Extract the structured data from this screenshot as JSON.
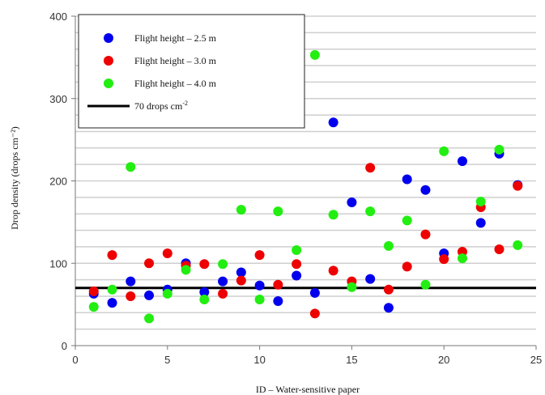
{
  "chart_data": {
    "type": "scatter",
    "xlabel": "ID – Water-sensitive paper",
    "ylabel": "Drop density (drops cm⁻²)",
    "xlim": [
      0,
      25
    ],
    "ylim": [
      0,
      400
    ],
    "x_ticks": [
      0,
      5,
      10,
      15,
      20,
      25
    ],
    "y_ticks": [
      0,
      100,
      200,
      300,
      400
    ],
    "grid": "horizontal",
    "legend_position": "top-left",
    "series": [
      {
        "name": "Flight height – 2.5 m",
        "color": "#0000ee",
        "x": [
          1,
          2,
          3,
          4,
          5,
          6,
          7,
          8,
          9,
          10,
          11,
          12,
          13,
          14,
          15,
          16,
          17,
          18,
          19,
          20,
          21,
          22,
          23,
          24
        ],
        "y": [
          63,
          52,
          78,
          61,
          68,
          100,
          65,
          78,
          89,
          73,
          54,
          85,
          64,
          271,
          174,
          81,
          46,
          202,
          189,
          112,
          224,
          149,
          233,
          195
        ]
      },
      {
        "name": "Flight height – 3.0 m",
        "color": "#ee0000",
        "x": [
          1,
          2,
          3,
          4,
          5,
          6,
          7,
          8,
          9,
          10,
          11,
          12,
          13,
          14,
          15,
          16,
          17,
          18,
          19,
          20,
          21,
          22,
          23,
          24
        ],
        "y": [
          66,
          110,
          60,
          100,
          112,
          97,
          99,
          63,
          79,
          110,
          74,
          99,
          39,
          91,
          78,
          216,
          68,
          96,
          135,
          105,
          114,
          168,
          117,
          194
        ]
      },
      {
        "name": "Flight height – 4.0 m",
        "color": "#22ee11",
        "x": [
          1,
          2,
          3,
          4,
          5,
          6,
          7,
          8,
          9,
          10,
          11,
          12,
          13,
          14,
          15,
          16,
          17,
          18,
          19,
          20,
          21,
          22,
          23,
          24
        ],
        "y": [
          47,
          68,
          217,
          33,
          63,
          92,
          56,
          99,
          165,
          56,
          163,
          116,
          353,
          159,
          71,
          163,
          121,
          152,
          74,
          236,
          106,
          175,
          238,
          122
        ]
      }
    ],
    "reference_line": {
      "value": 70,
      "label": "70 drops cm",
      "label_sup": "-2",
      "color": "#000000"
    }
  }
}
